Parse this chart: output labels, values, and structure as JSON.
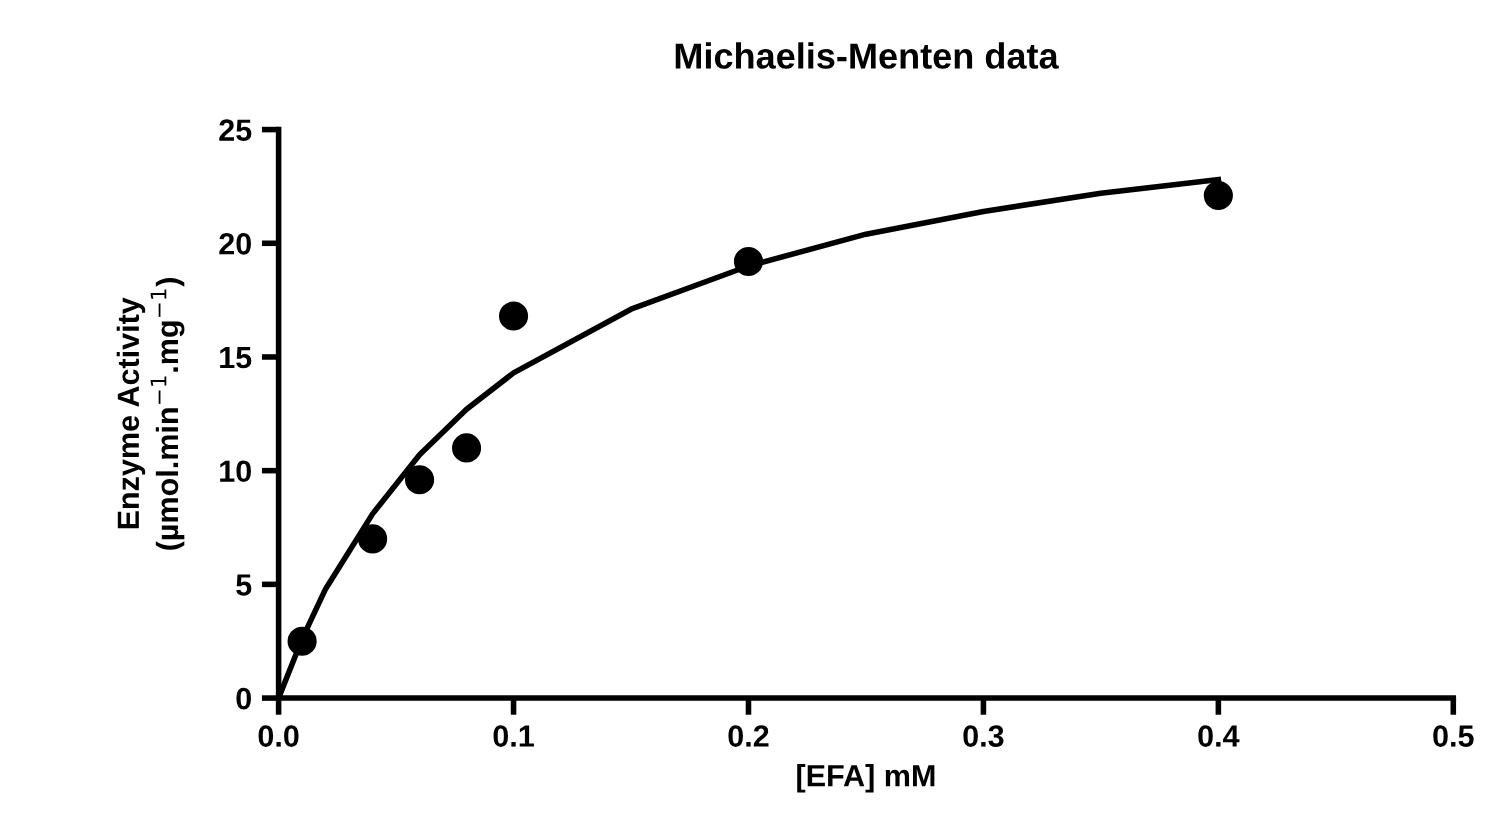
{
  "chart_data": {
    "type": "scatter",
    "title": "Michaelis-Menten data",
    "xlabel": "[EFA] mM",
    "ylabel": "Enzyme Activity\n(µmol.min$^{−1}$.mg$^{−1}$)",
    "xlim": [
      0,
      0.5
    ],
    "ylim": [
      0,
      25
    ],
    "xticks": [
      {
        "value": 0,
        "label": "0.0"
      },
      {
        "value": 0.1,
        "label": "0.1"
      },
      {
        "value": 0.2,
        "label": "0.2"
      },
      {
        "value": 0.3,
        "label": "0.3"
      },
      {
        "value": 0.4,
        "label": "0.4"
      },
      {
        "value": 0.5,
        "label": "0.5"
      }
    ],
    "yticks": [
      0,
      5,
      10,
      15,
      20,
      25
    ],
    "grid": false,
    "legend": false,
    "series": [
      {
        "color": "#000000",
        "marker": "circle",
        "x": [
          0.01,
          0.04,
          0.06,
          0.08,
          0.1,
          0.2,
          0.4
        ],
        "values": [
          2.5,
          7.0,
          9.6,
          11.0,
          16.8,
          19.2,
          22.1
        ]
      },
      {
        "type": "line",
        "color": "#000000",
        "marker": "none",
        "line_style": "solid",
        "x": [
          0,
          0.01,
          0.02,
          0.04,
          0.06,
          0.08,
          0.1,
          0.15,
          0.2,
          0.25,
          0.3,
          0.35,
          0.4
        ],
        "values": [
          0,
          2.6,
          4.8,
          8.1,
          10.7,
          12.7,
          14.3,
          17.1,
          19.0,
          20.4,
          21.4,
          22.2,
          22.8
        ]
      }
    ]
  }
}
